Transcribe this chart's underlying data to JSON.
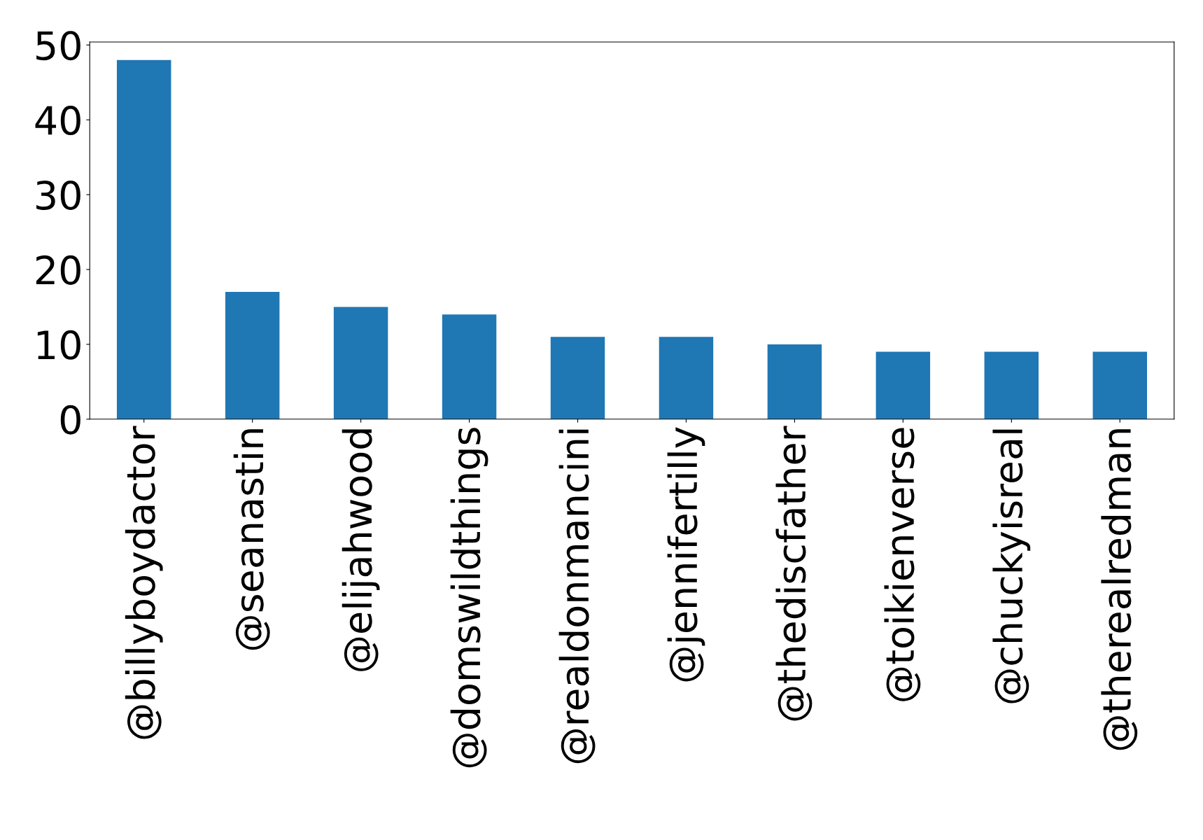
{
  "chart_data": {
    "type": "bar",
    "categories": [
      "@billyboydactor",
      "@seanastin",
      "@elijahwood",
      "@domswildthings",
      "@realdonmancini",
      "@jennifertilly",
      "@thediscfather",
      "@toikienverse",
      "@chuckyisreal",
      "@therealredman"
    ],
    "values": [
      48,
      17,
      15,
      14,
      11,
      11,
      10,
      9,
      9,
      9
    ],
    "color": "#1f77b4",
    "ylim": [
      0,
      50.4
    ],
    "yticks": [
      0,
      10,
      20,
      30,
      40,
      50
    ],
    "grid": false,
    "legend": false
  }
}
